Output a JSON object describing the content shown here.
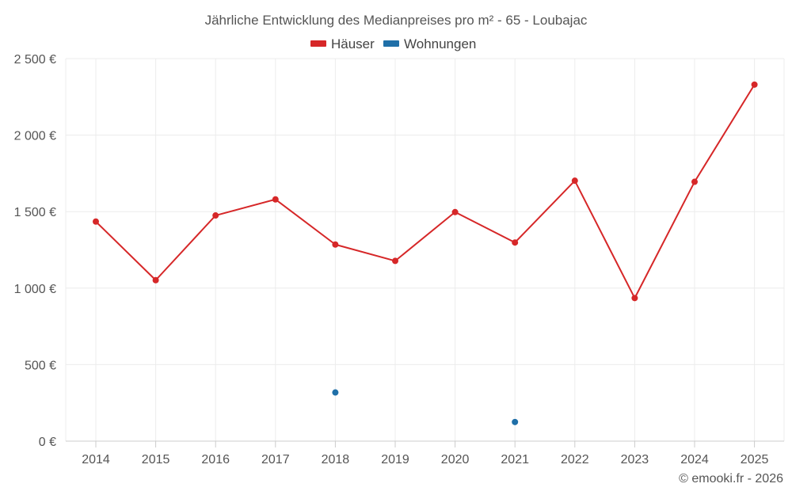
{
  "chart_data": {
    "type": "line",
    "title": "Jährliche Entwicklung des Medianpreises pro m² - 65 - Loubajac",
    "categories": [
      "2014",
      "2015",
      "2016",
      "2017",
      "2018",
      "2019",
      "2020",
      "2021",
      "2022",
      "2023",
      "2024",
      "2025"
    ],
    "ylim": [
      0,
      2500
    ],
    "yticks": [
      0,
      500,
      1000,
      1500,
      2000,
      2500
    ],
    "ytick_labels": [
      "0 €",
      "500 €",
      "1 000 €",
      "1 500 €",
      "2 000 €",
      "2 500 €"
    ],
    "grid": true,
    "legend_position": "top-center",
    "series": [
      {
        "name": "Häuser",
        "color": "#d62728",
        "line": true,
        "values": [
          1435,
          1052,
          1475,
          1580,
          1285,
          1178,
          1497,
          1298,
          1702,
          935,
          1695,
          2330
        ]
      },
      {
        "name": "Wohnungen",
        "color": "#1f6fa8",
        "line": false,
        "values": [
          null,
          null,
          null,
          null,
          318,
          null,
          null,
          125,
          null,
          null,
          null,
          null
        ]
      }
    ]
  },
  "credit": "© emooki.fr - 2026"
}
